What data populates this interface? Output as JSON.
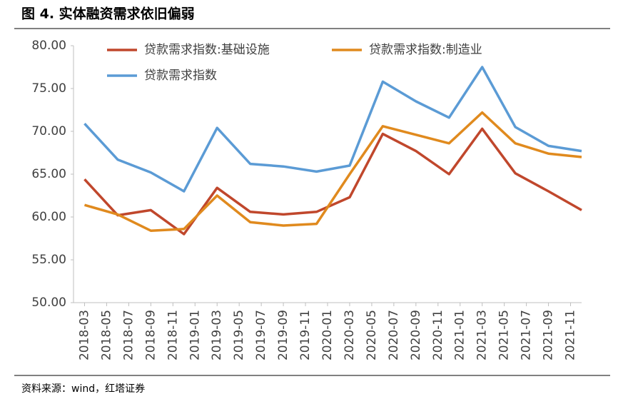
{
  "chart_data": {
    "type": "line",
    "title": "图 4. 实体融资需求依旧偏弱",
    "source": "资料来源：wind，红塔证券",
    "x": [
      "2018-03",
      "2018-06",
      "2018-09",
      "2018-12",
      "2019-03",
      "2019-06",
      "2019-09",
      "2019-12",
      "2020-03",
      "2020-06",
      "2020-09",
      "2020-12",
      "2021-03",
      "2021-06",
      "2021-09",
      "2021-12"
    ],
    "xlim": [
      "2018-02",
      "2021-12"
    ],
    "xticks": [
      "2018-03",
      "2018-05",
      "2018-07",
      "2018-09",
      "2018-11",
      "2019-01",
      "2019-03",
      "2019-05",
      "2019-07",
      "2019-09",
      "2019-11",
      "2020-01",
      "2020-03",
      "2020-05",
      "2020-07",
      "2020-09",
      "2020-11",
      "2021-01",
      "2021-03",
      "2021-05",
      "2021-07",
      "2021-09",
      "2021-11"
    ],
    "ylim": [
      50,
      80
    ],
    "yticks": [
      {
        "value": 50,
        "label": "50.00"
      },
      {
        "value": 55,
        "label": "55.00"
      },
      {
        "value": 60,
        "label": "60.00"
      },
      {
        "value": 65,
        "label": "65.00"
      },
      {
        "value": 70,
        "label": "70.00"
      },
      {
        "value": 75,
        "label": "75.00"
      },
      {
        "value": 80,
        "label": "80.00"
      }
    ],
    "series": [
      {
        "name": "贷款需求指数:基础设施",
        "color": "#c0472c",
        "values": [
          64.4,
          60.2,
          60.8,
          58.0,
          63.4,
          60.6,
          60.3,
          60.6,
          62.3,
          69.7,
          67.7,
          65.0,
          70.3,
          65.1,
          63.0,
          60.8
        ]
      },
      {
        "name": "贷款需求指数:制造业",
        "color": "#e08a1e",
        "values": [
          61.4,
          60.3,
          58.4,
          58.6,
          62.5,
          59.4,
          59.0,
          59.2,
          65.0,
          70.6,
          69.6,
          68.6,
          72.2,
          68.6,
          67.4,
          67.0
        ]
      },
      {
        "name": "贷款需求指数",
        "color": "#5b9bd5",
        "values": [
          70.9,
          66.7,
          65.2,
          63.0,
          70.4,
          66.2,
          65.9,
          65.3,
          66.0,
          75.8,
          73.5,
          71.6,
          77.5,
          70.5,
          68.3,
          67.7
        ]
      }
    ]
  }
}
